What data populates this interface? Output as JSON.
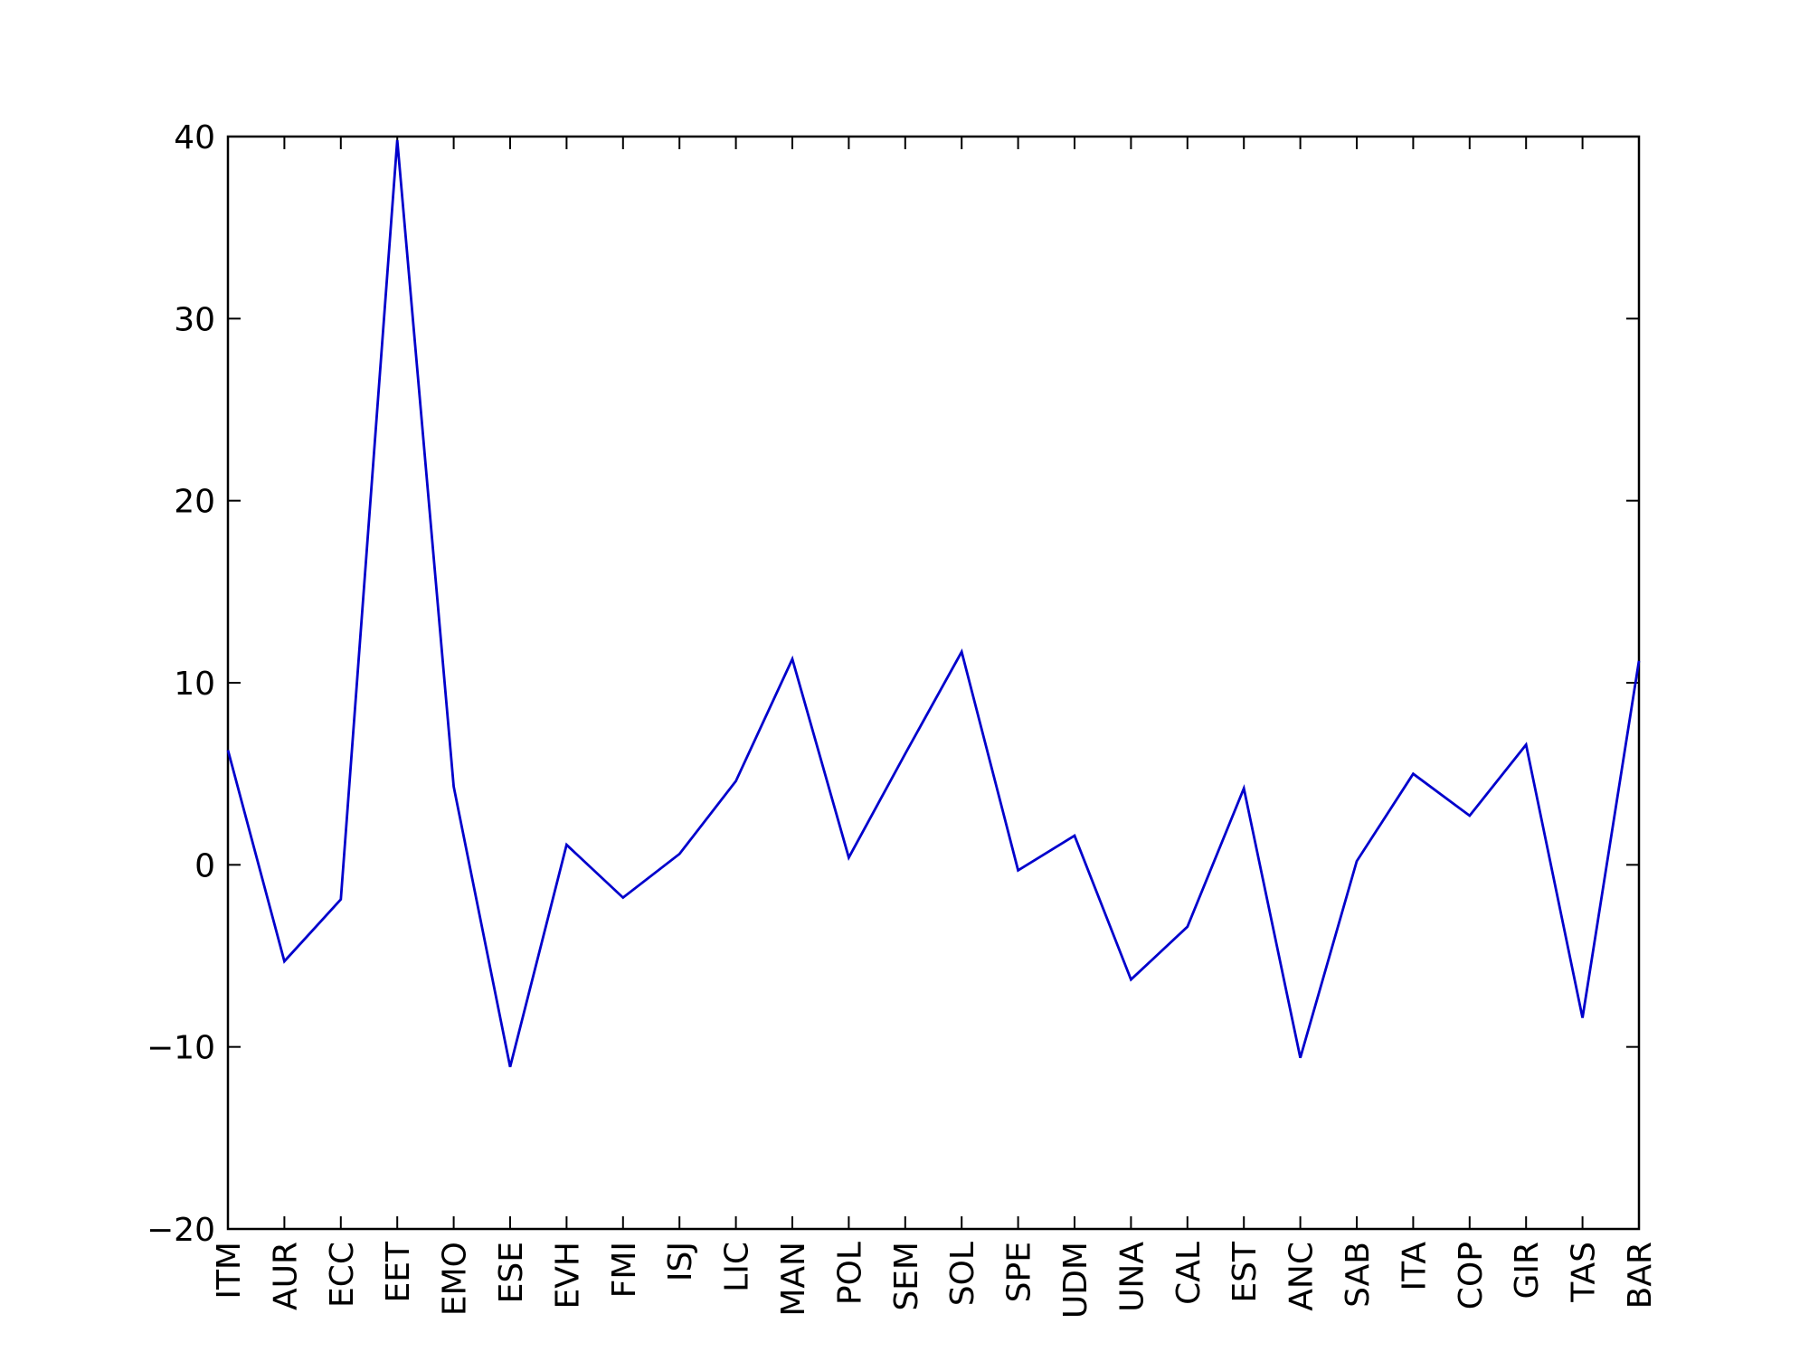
{
  "chart_data": {
    "type": "line",
    "title": "",
    "xlabel": "",
    "ylabel": "",
    "categories": [
      "ITM",
      "AUR",
      "ECC",
      "EET",
      "EMO",
      "ESE",
      "EVH",
      "FMI",
      "ISJ",
      "LIC",
      "MAN",
      "POL",
      "SEM",
      "SOL",
      "SPE",
      "UDM",
      "UNA",
      "CAL",
      "EST",
      "ANC",
      "SAB",
      "ITA",
      "COP",
      "GIR",
      "TAS",
      "BAR"
    ],
    "series": [
      {
        "color": "#0000cc",
        "values": [
          6.3,
          -5.3,
          -1.9,
          39.8,
          4.3,
          -11.1,
          1.1,
          -1.8,
          0.6,
          4.6,
          11.3,
          0.4,
          6.1,
          11.7,
          -0.3,
          1.6,
          -6.3,
          -3.4,
          4.2,
          -10.6,
          0.2,
          5.0,
          2.7,
          6.6,
          -8.4,
          11.2
        ]
      }
    ],
    "ylim": [
      -20,
      40
    ],
    "yticks": [
      40,
      30,
      20,
      10,
      0,
      -10,
      -20
    ],
    "ytick_labels": [
      "40",
      "30",
      "20",
      "10",
      "0",
      "−10",
      "−20"
    ],
    "grid": false,
    "legend": "none"
  }
}
